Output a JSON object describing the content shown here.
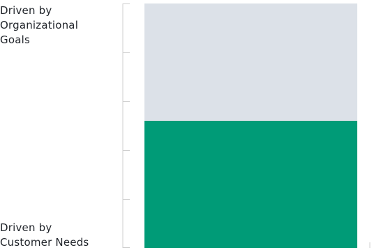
{
  "chart_data": {
    "type": "bar",
    "orientation": "vertical-stacked",
    "categories": [
      ""
    ],
    "series": [
      {
        "values": [
          52
        ],
        "color": "#009b77"
      },
      {
        "values": [
          48
        ],
        "color": "#dce1e8"
      }
    ],
    "ylim": [
      0,
      100
    ],
    "grid": false,
    "y_axis_labels": {
      "top": "Driven by\nOrganizational\nGoals",
      "bottom": "Driven by\nCustomer Needs"
    }
  },
  "colors": {
    "axis": "#cfcfcf",
    "text": "#1f2329"
  }
}
